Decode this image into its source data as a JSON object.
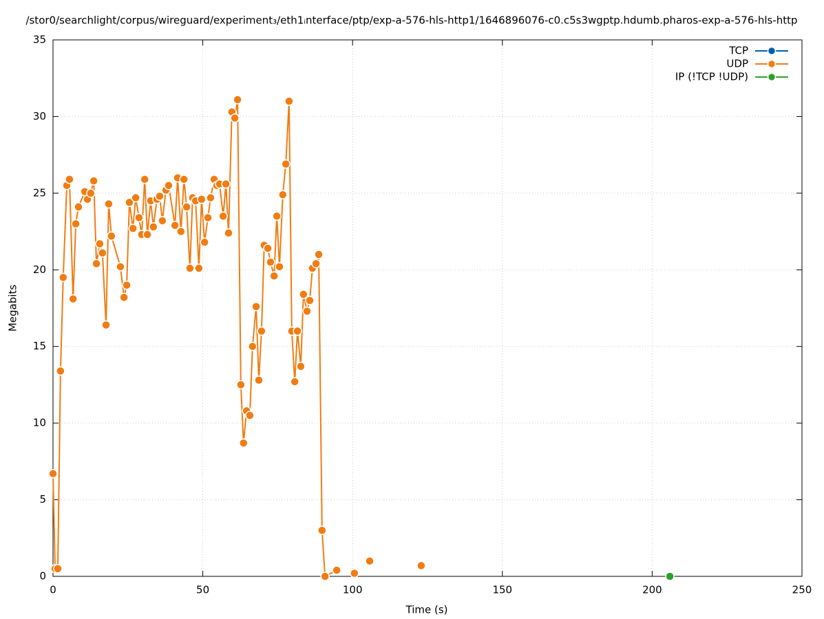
{
  "chart_data": {
    "type": "line",
    "title": "/stor0/searchlight/corpus/wireguard/experiment₃/eth1ᵢnterface/ptp/exp-a-576-hls-http1/1646896076-c0.c5s3wgptp.hdumb.pharos-exp-a-576-hls-http",
    "x_label": "Time (s)",
    "y_label": "Megabits",
    "xlim": [
      0,
      250
    ],
    "xticks": [
      0,
      50,
      100,
      150,
      200,
      250
    ],
    "ylim": [
      0,
      35
    ],
    "yticks": [
      0,
      5,
      10,
      15,
      20,
      25,
      30,
      35
    ],
    "grid": true,
    "legend": "top-right",
    "series": [
      {
        "name": "TCP",
        "color": "#0060ad",
        "x": [],
        "values": []
      },
      {
        "name": "UDP",
        "color": "#f07c12",
        "x": [
          0,
          0.7,
          1.6,
          2.5,
          3.4,
          4.6,
          5.5,
          6.7,
          7.6,
          8.5,
          10.6,
          11.5,
          12.6,
          13.6,
          14.5,
          15.6,
          16.5,
          17.7,
          18.6,
          19.5,
          22.5,
          23.7,
          24.6,
          25.5,
          26.7,
          27.6,
          28.7,
          29.6,
          30.6,
          31.5,
          32.6,
          33.5,
          34.7,
          35.6,
          36.5,
          37.7,
          38.6,
          40.7,
          41.6,
          42.7,
          43.7,
          44.6,
          45.7,
          46.6,
          47.6,
          48.7,
          49.6,
          50.6,
          51.7,
          52.6,
          53.8,
          54.7,
          55.6,
          56.8,
          57.7,
          58.6,
          59.7,
          60.7,
          61.6,
          62.7,
          63.6,
          64.6,
          65.7,
          66.6,
          67.8,
          68.7,
          69.6,
          70.5,
          71.7,
          72.6,
          73.8,
          74.7,
          75.6,
          76.7,
          77.7,
          78.8,
          79.7,
          80.7,
          81.6,
          82.7,
          83.6,
          84.8,
          85.7,
          86.6,
          87.8,
          88.7,
          89.8,
          90.8,
          94.7,
          97,
          100.6,
          103,
          105.7,
          110,
          122.9
        ],
        "values": [
          6.7,
          0.5,
          0.5,
          13.4,
          19.5,
          25.5,
          25.9,
          18.1,
          23.0,
          24.1,
          25.1,
          24.6,
          25.0,
          25.8,
          20.4,
          21.7,
          21.1,
          16.4,
          24.3,
          22.2,
          20.2,
          18.2,
          19.0,
          24.4,
          22.7,
          24.7,
          23.4,
          22.3,
          25.9,
          22.3,
          24.5,
          22.8,
          24.6,
          24.8,
          23.2,
          25.2,
          25.5,
          22.9,
          26.0,
          22.5,
          25.9,
          24.1,
          20.1,
          24.7,
          24.5,
          20.1,
          24.6,
          21.8,
          23.4,
          24.7,
          25.9,
          25.5,
          25.6,
          23.5,
          25.6,
          22.4,
          30.3,
          29.9,
          31.1,
          12.5,
          8.7,
          10.8,
          10.5,
          15.0,
          17.6,
          12.8,
          16.0,
          21.6,
          21.4,
          20.5,
          19.6,
          23.5,
          20.2,
          24.9,
          26.9,
          31.0,
          16.0,
          12.7,
          16.0,
          13.7,
          18.4,
          17.3,
          18.0,
          20.1,
          20.4,
          21.0,
          3.0,
          0,
          0.4,
          null,
          0.2,
          null,
          1.0,
          null,
          0.7
        ]
      },
      {
        "name": "IP (!TCP  !UDP)",
        "color": "#2ca02c",
        "x": [
          205.9
        ],
        "values": [
          0
        ]
      }
    ]
  }
}
